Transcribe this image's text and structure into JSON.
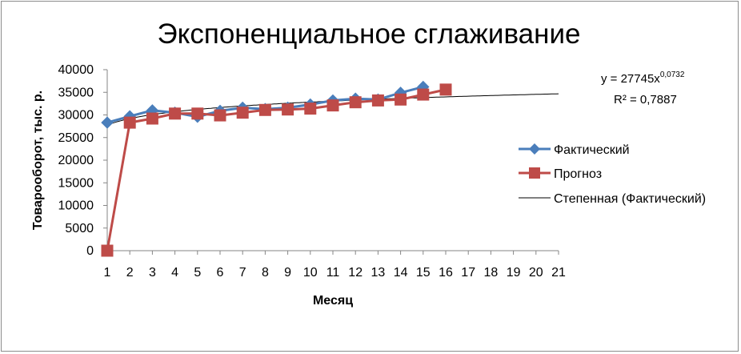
{
  "chart_data": {
    "type": "line",
    "title": "Экспоненциальное сглаживание",
    "xlabel": "Месяц",
    "ylabel": "Товарооборот, тыс. р.",
    "xlim": [
      1,
      21
    ],
    "ylim": [
      0,
      40000
    ],
    "x_ticks": [
      "1",
      "2",
      "3",
      "4",
      "5",
      "6",
      "7",
      "8",
      "9",
      "10",
      "11",
      "12",
      "13",
      "14",
      "15",
      "16",
      "17",
      "18",
      "19",
      "20",
      "21"
    ],
    "y_ticks": [
      "0",
      "5000",
      "10000",
      "15000",
      "20000",
      "25000",
      "30000",
      "35000",
      "40000"
    ],
    "grid": false,
    "legend_position": "right",
    "series": [
      {
        "name": "Фактический",
        "color": "#4a7ebb",
        "marker": "diamond",
        "x": [
          1,
          2,
          3,
          4,
          5,
          6,
          7,
          8,
          9,
          10,
          11,
          12,
          13,
          14,
          15
        ],
        "values": [
          28300,
          29700,
          31000,
          30500,
          29600,
          30900,
          31600,
          31300,
          31600,
          32300,
          33200,
          33600,
          33400,
          34900,
          36200
        ]
      },
      {
        "name": "Прогноз",
        "color": "#be4b48",
        "marker": "square",
        "x": [
          1,
          2,
          3,
          4,
          5,
          6,
          7,
          8,
          9,
          10,
          11,
          12,
          13,
          14,
          15,
          16
        ],
        "values": [
          0,
          28300,
          29200,
          30300,
          30300,
          29900,
          30500,
          31100,
          31200,
          31400,
          32100,
          32800,
          33200,
          33400,
          34500,
          35600
        ]
      }
    ],
    "trendline": {
      "name": "Степенная (Фактический)",
      "type": "power",
      "color": "#000000",
      "coefficient": 27745,
      "exponent": 0.0732,
      "x_range": [
        1,
        21
      ],
      "equation_text": "y = 27745x",
      "equation_exponent": "0,0732",
      "r2_text": "R² = 0,7887"
    }
  }
}
